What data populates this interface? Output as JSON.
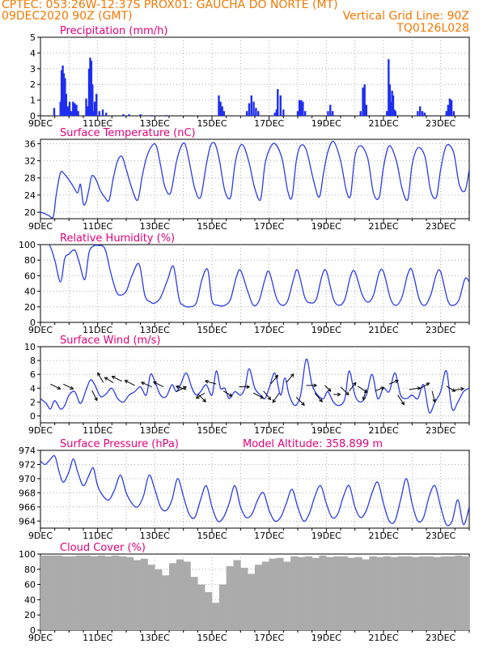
{
  "header": {
    "line1_left": "CPTEC:   053:26W-12:37S   PROX01: GAUCHA DO NORTE (MT)",
    "line2_left": "09DEC2020 90Z (GMT)",
    "line2_right": "Vertical Grid Line: 90Z",
    "line3_right": "TQ0126L028"
  },
  "colors": {
    "header": "#f07800",
    "title": "#e0007a",
    "line": "#2a3ce8",
    "bar": "#1f2ef0",
    "cloud": "#ababab"
  },
  "chart_data": [
    {
      "id": "precip",
      "type": "bar",
      "title": "Precipitation (mm/h)",
      "ylim": [
        0,
        5
      ],
      "yticks": [
        0,
        1,
        2,
        3,
        4,
        5
      ],
      "xlim": [
        0,
        15
      ],
      "xticks": [
        "9DEC",
        "11DEC",
        "13DEC",
        "15DEC",
        "17DEC",
        "19DEC",
        "21DEC",
        "23DEC"
      ],
      "xtick_day": [
        0,
        2,
        4,
        6,
        8,
        10,
        12,
        14
      ],
      "grid": "dotted",
      "x_unit": "days since 9DEC",
      "x": [
        0.48,
        0.7,
        0.74,
        0.78,
        0.82,
        0.86,
        0.9,
        0.96,
        1.02,
        1.08,
        1.14,
        1.2,
        1.26,
        1.32,
        1.6,
        1.66,
        1.7,
        1.74,
        1.78,
        1.82,
        1.86,
        1.9,
        1.96,
        2.06,
        2.18,
        2.3,
        2.9,
        3.1,
        3.5,
        3.9,
        4.4,
        6.24,
        6.3,
        6.36,
        6.42,
        7.22,
        7.3,
        7.38,
        7.46,
        7.54,
        7.62,
        8.2,
        8.26,
        8.3,
        8.4,
        8.5,
        9.0,
        9.06,
        9.12,
        9.18,
        9.26,
        10.06,
        10.14,
        10.22,
        11.2,
        11.28,
        11.34,
        11.4,
        12.12,
        12.18,
        12.22,
        12.26,
        12.3,
        12.34,
        12.38,
        12.42,
        13.2,
        13.28,
        13.36,
        13.44,
        14.2,
        14.26,
        14.32,
        14.38,
        14.46
      ],
      "values": [
        0.5,
        0.9,
        2.9,
        3.2,
        2.7,
        2.4,
        1.4,
        0.6,
        0.9,
        0.3,
        0.9,
        0.8,
        0.7,
        0.3,
        1.1,
        0.6,
        3.0,
        3.7,
        3.5,
        2.0,
        0.3,
        0.9,
        1.4,
        0.3,
        0.4,
        0.2,
        0.1,
        0.1,
        0.1,
        0.05,
        0.05,
        1.3,
        0.9,
        0.6,
        0.3,
        0.3,
        0.8,
        1.3,
        0.9,
        0.5,
        0.3,
        0.2,
        0.4,
        1.7,
        1.3,
        0.4,
        0.3,
        1.0,
        1.0,
        0.9,
        0.3,
        0.3,
        0.7,
        0.3,
        0.3,
        1.8,
        2.0,
        0.7,
        0.3,
        3.6,
        2.0,
        0.9,
        1.6,
        1.3,
        0.4,
        0.3,
        0.3,
        0.6,
        0.3,
        0.2,
        0.3,
        0.7,
        1.1,
        1.0,
        0.3
      ]
    },
    {
      "id": "temp",
      "type": "line",
      "title": "Surface Temperature (nC)",
      "ylim": [
        18.5,
        37
      ],
      "yticks": [
        20,
        24,
        28,
        32,
        36
      ],
      "xlim": [
        0,
        15
      ],
      "xticks": [
        "9DEC",
        "11DEC",
        "13DEC",
        "15DEC",
        "17DEC",
        "19DEC",
        "21DEC",
        "23DEC"
      ],
      "xtick_day": [
        0,
        2,
        4,
        6,
        8,
        10,
        12,
        14
      ],
      "grid": "dotted",
      "x_unit": "days since 9DEC",
      "x": [
        0,
        0.15,
        0.3,
        0.45,
        0.55,
        0.7,
        0.85,
        1.0,
        1.15,
        1.3,
        1.4,
        1.5,
        1.6,
        1.7,
        1.8,
        1.95,
        2.1,
        2.25,
        2.4,
        2.55,
        2.7,
        2.85,
        3.0,
        3.2,
        3.4,
        3.55,
        3.7,
        3.9,
        4.05,
        4.2,
        4.35,
        4.55,
        4.75,
        4.9,
        5.05,
        5.2,
        5.4,
        5.6,
        5.8,
        5.95,
        6.1,
        6.25,
        6.45,
        6.65,
        6.8,
        6.95,
        7.1,
        7.3,
        7.5,
        7.7,
        7.85,
        8.0,
        8.2,
        8.45,
        8.65,
        8.8,
        8.95,
        9.1,
        9.3,
        9.55,
        9.75,
        9.9,
        10.05,
        10.25,
        10.5,
        10.7,
        10.85,
        11.0,
        11.2,
        11.45,
        11.65,
        11.85,
        12.0,
        12.2,
        12.45,
        12.65,
        12.85,
        13.0,
        13.2,
        13.45,
        13.65,
        13.85,
        14.0,
        14.2,
        14.45,
        14.65,
        14.85,
        15.0
      ],
      "values": [
        20,
        19.7,
        19.2,
        19.0,
        24.0,
        29.2,
        28.8,
        27.5,
        26.0,
        24.5,
        26.5,
        22.0,
        22.5,
        25.5,
        28.5,
        27.5,
        25.0,
        23.5,
        22.8,
        28.0,
        32.0,
        33.0,
        30.0,
        25.5,
        22.8,
        28.0,
        32.5,
        35.5,
        35.5,
        31.0,
        26.0,
        24.5,
        31.5,
        35.0,
        36.0,
        32.0,
        25.5,
        23.5,
        31.0,
        35.5,
        36.0,
        32.5,
        25.0,
        23.5,
        31.0,
        35.0,
        35.5,
        31.5,
        25.5,
        23.0,
        31.0,
        34.5,
        36.0,
        32.5,
        25.0,
        23.5,
        32.0,
        35.5,
        34.5,
        27.5,
        23.5,
        29.0,
        34.0,
        36.5,
        32.0,
        25.0,
        24.0,
        33.0,
        35.5,
        32.5,
        24.5,
        23.5,
        30.5,
        35.5,
        32.0,
        25.5,
        23.0,
        31.0,
        35.0,
        33.0,
        25.0,
        23.5,
        30.0,
        35.5,
        34.0,
        26.5,
        25.0,
        30.0
      ]
    },
    {
      "id": "rh",
      "type": "line",
      "title": "Relative Humidity (%)",
      "ylim": [
        0,
        100
      ],
      "yticks": [
        0,
        20,
        40,
        60,
        80,
        100
      ],
      "xlim": [
        0,
        15
      ],
      "xticks": [
        "9DEC",
        "11DEC",
        "13DEC",
        "15DEC",
        "17DEC",
        "19DEC",
        "21DEC",
        "23DEC"
      ],
      "xtick_day": [
        0,
        2,
        4,
        6,
        8,
        10,
        12,
        14
      ],
      "grid": "dotted",
      "x_unit": "days since 9DEC",
      "x": [
        0,
        0.3,
        0.5,
        0.7,
        0.85,
        1.0,
        1.2,
        1.35,
        1.55,
        1.7,
        1.85,
        2.0,
        2.25,
        2.45,
        2.65,
        2.8,
        3.0,
        3.2,
        3.45,
        3.65,
        3.85,
        4.0,
        4.2,
        4.45,
        4.65,
        4.85,
        5.0,
        5.2,
        5.45,
        5.65,
        5.85,
        6.0,
        6.2,
        6.45,
        6.65,
        6.85,
        7.0,
        7.25,
        7.45,
        7.65,
        7.85,
        8.0,
        8.25,
        8.45,
        8.65,
        8.85,
        9.0,
        9.25,
        9.45,
        9.65,
        9.85,
        10.0,
        10.25,
        10.45,
        10.65,
        10.85,
        11.0,
        11.25,
        11.45,
        11.65,
        11.85,
        12.0,
        12.25,
        12.45,
        12.65,
        12.85,
        13.0,
        13.25,
        13.45,
        13.65,
        13.85,
        14.0,
        14.25,
        14.45,
        14.65,
        14.85,
        15.0
      ],
      "values": [
        100,
        100,
        80,
        52,
        82,
        88,
        93,
        78,
        55,
        90,
        98,
        99,
        95,
        65,
        40,
        35,
        40,
        60,
        75,
        35,
        26,
        25,
        32,
        55,
        72,
        30,
        22,
        20,
        25,
        55,
        68,
        28,
        22,
        22,
        30,
        58,
        67,
        40,
        22,
        28,
        55,
        65,
        32,
        22,
        28,
        55,
        67,
        32,
        25,
        30,
        60,
        66,
        30,
        22,
        30,
        60,
        65,
        36,
        26,
        35,
        64,
        65,
        30,
        22,
        33,
        62,
        67,
        30,
        22,
        35,
        62,
        65,
        28,
        22,
        30,
        56,
        52
      ]
    },
    {
      "id": "wind",
      "type": "line",
      "title": "Surface Wind (m/s)",
      "ylim": [
        -1,
        10
      ],
      "yticks": [
        0,
        2,
        4,
        6,
        8,
        10
      ],
      "xlim": [
        0,
        15
      ],
      "xticks": [
        "9DEC",
        "11DEC",
        "13DEC",
        "15DEC",
        "17DEC",
        "19DEC",
        "21DEC",
        "23DEC"
      ],
      "xtick_day": [
        0,
        2,
        4,
        6,
        8,
        10,
        12,
        14
      ],
      "grid": "dotted",
      "x_unit": "days since 9DEC",
      "x": [
        0,
        0.2,
        0.35,
        0.5,
        0.7,
        0.85,
        1.0,
        1.2,
        1.4,
        1.6,
        1.75,
        1.9,
        2.1,
        2.3,
        2.5,
        2.7,
        2.9,
        3.1,
        3.3,
        3.5,
        3.7,
        3.85,
        4.0,
        4.2,
        4.4,
        4.6,
        4.75,
        4.9,
        5.1,
        5.3,
        5.45,
        5.6,
        5.8,
        6.0,
        6.15,
        6.3,
        6.45,
        6.6,
        6.8,
        7.0,
        7.15,
        7.3,
        7.5,
        7.7,
        7.85,
        8.0,
        8.2,
        8.4,
        8.55,
        8.7,
        8.9,
        9.1,
        9.3,
        9.5,
        9.7,
        9.9,
        10.05,
        10.25,
        10.45,
        10.65,
        10.8,
        11.0,
        11.2,
        11.4,
        11.6,
        11.8,
        12.0,
        12.2,
        12.4,
        12.6,
        12.8,
        13.0,
        13.2,
        13.4,
        13.6,
        13.8,
        14.0,
        14.2,
        14.4,
        14.6,
        14.8,
        15.0
      ],
      "values": [
        2.5,
        1.8,
        1.0,
        2.2,
        1.0,
        1.5,
        3.0,
        3.5,
        1.8,
        3.8,
        5.2,
        4.5,
        2.8,
        3.2,
        4.0,
        2.5,
        2.0,
        3.0,
        3.5,
        4.2,
        3.0,
        6.0,
        5.0,
        3.0,
        2.8,
        4.5,
        3.5,
        4.5,
        6.2,
        4.0,
        3.0,
        3.5,
        4.5,
        3.0,
        6.5,
        4.0,
        4.0,
        2.5,
        3.5,
        3.0,
        4.0,
        6.8,
        4.0,
        3.0,
        2.5,
        4.0,
        6.2,
        3.0,
        5.5,
        3.0,
        1.5,
        3.0,
        8.2,
        4.5,
        3.0,
        2.5,
        3.5,
        2.0,
        1.5,
        2.5,
        6.5,
        3.0,
        2.0,
        3.0,
        6.0,
        2.5,
        4.0,
        3.5,
        6.2,
        3.0,
        2.5,
        3.0,
        2.5,
        4.5,
        0.5,
        2.0,
        3.5,
        6.5,
        1.0,
        2.0,
        3.5,
        4.0
      ]
    },
    {
      "id": "pres",
      "type": "line",
      "title": "Surface Pressure (hPa)",
      "annotation": "Model Altitude: 358.899  m",
      "ylim": [
        963,
        974
      ],
      "yticks": [
        964,
        966,
        968,
        970,
        972,
        974
      ],
      "xlim": [
        0,
        15
      ],
      "xticks": [
        "9DEC",
        "11DEC",
        "13DEC",
        "15DEC",
        "17DEC",
        "19DEC",
        "21DEC",
        "23DEC"
      ],
      "xtick_day": [
        0,
        2,
        4,
        6,
        8,
        10,
        12,
        14
      ],
      "grid": "dotted",
      "x_unit": "days since 9DEC",
      "x": [
        0,
        0.15,
        0.3,
        0.5,
        0.65,
        0.8,
        1.0,
        1.15,
        1.3,
        1.5,
        1.7,
        1.85,
        2.0,
        2.2,
        2.4,
        2.6,
        2.8,
        3.0,
        3.2,
        3.4,
        3.6,
        3.8,
        4.0,
        4.2,
        4.4,
        4.6,
        4.8,
        5.0,
        5.2,
        5.4,
        5.6,
        5.8,
        6.0,
        6.2,
        6.4,
        6.6,
        6.8,
        7.0,
        7.2,
        7.4,
        7.6,
        7.8,
        8.0,
        8.2,
        8.4,
        8.6,
        8.8,
        9.0,
        9.2,
        9.4,
        9.6,
        9.8,
        10.0,
        10.2,
        10.4,
        10.6,
        10.8,
        11.0,
        11.2,
        11.4,
        11.6,
        11.8,
        12.0,
        12.2,
        12.4,
        12.6,
        12.8,
        13.0,
        13.2,
        13.4,
        13.6,
        13.8,
        14.0,
        14.2,
        14.4,
        14.6,
        14.8,
        15.0
      ],
      "values": [
        972.5,
        972.0,
        972.5,
        973.2,
        971.0,
        969.5,
        971.0,
        972.8,
        971.0,
        969.0,
        970.5,
        971.5,
        969.0,
        967.5,
        967.0,
        968.5,
        970.5,
        968.0,
        966.5,
        966.0,
        967.5,
        970.5,
        968.5,
        966.0,
        965.5,
        967.0,
        970.0,
        967.5,
        965.0,
        964.5,
        967.0,
        969.0,
        966.0,
        964.0,
        964.5,
        966.5,
        969.0,
        966.0,
        964.5,
        965.0,
        967.0,
        968.0,
        965.5,
        964.0,
        964.5,
        966.5,
        968.5,
        966.0,
        964.0,
        965.0,
        967.5,
        969.0,
        966.5,
        964.5,
        965.0,
        967.5,
        969.0,
        966.0,
        964.5,
        965.5,
        968.0,
        969.5,
        966.5,
        964.0,
        964.0,
        967.0,
        970.0,
        966.5,
        964.0,
        964.5,
        967.5,
        969.0,
        966.0,
        963.5,
        964.0,
        967.0,
        963.5,
        966.0
      ]
    },
    {
      "id": "cloud",
      "type": "bar",
      "title": "Cloud Cover (%)",
      "ylim": [
        0,
        100
      ],
      "yticks": [
        0,
        20,
        40,
        60,
        80,
        100
      ],
      "xlim": [
        0,
        15
      ],
      "xticks": [
        "9DEC",
        "11DEC",
        "13DEC",
        "15DEC",
        "17DEC",
        "19DEC",
        "21DEC",
        "23DEC"
      ],
      "xtick_day": [
        0,
        2,
        4,
        6,
        8,
        10,
        12,
        14
      ],
      "grid": "dotted",
      "x_unit": "days since 9DEC",
      "x": [
        0,
        0.25,
        0.5,
        0.75,
        1.0,
        1.25,
        1.5,
        1.75,
        2.0,
        2.25,
        2.5,
        2.75,
        3.0,
        3.25,
        3.5,
        3.75,
        4.0,
        4.25,
        4.5,
        4.75,
        5.0,
        5.25,
        5.5,
        5.75,
        6.0,
        6.25,
        6.5,
        6.75,
        7.0,
        7.25,
        7.5,
        7.75,
        8.0,
        8.25,
        8.5,
        8.75,
        9.0,
        9.25,
        9.5,
        9.75,
        10.0,
        10.25,
        10.5,
        10.75,
        11.0,
        11.25,
        11.5,
        11.75,
        12.0,
        12.25,
        12.5,
        12.75,
        13.0,
        13.25,
        13.5,
        13.75,
        14.0,
        14.25,
        14.5,
        14.75
      ],
      "values": [
        98,
        98,
        98,
        97,
        97,
        98,
        98,
        97,
        98,
        97,
        98,
        97,
        96,
        92,
        94,
        86,
        80,
        72,
        88,
        93,
        90,
        70,
        60,
        50,
        36,
        60,
        84,
        92,
        82,
        74,
        86,
        90,
        94,
        95,
        90,
        97,
        96,
        97,
        95,
        98,
        96,
        97,
        97,
        95,
        96,
        93,
        97,
        96,
        97,
        96,
        97,
        97,
        96,
        97,
        97,
        96,
        97,
        97,
        98,
        97
      ]
    }
  ],
  "wind_vectors": {
    "note": "wind direction arrows along the wind panel",
    "x": [
      0.35,
      0.8,
      1.8,
      2.2,
      2.55,
      2.85,
      3.3,
      3.9,
      4.3,
      4.75,
      5.1,
      5.5,
      5.75,
      6.15,
      6.4,
      6.95,
      7.45,
      7.8,
      8.05,
      8.35,
      8.6,
      8.95,
      9.3,
      9.6,
      9.95,
      10.25,
      10.5,
      10.8,
      11.1,
      11.4,
      11.7,
      12.2,
      12.5,
      12.9,
      13.3,
      13.7,
      14.2,
      14.45
    ],
    "y": [
      4.6,
      4.6,
      3.7,
      4.8,
      4.8,
      5.0,
      4.4,
      4.2,
      4.2,
      3.5,
      3.8,
      3.2,
      3.3,
      4.6,
      3.6,
      4.2,
      3.3,
      3.6,
      4.6,
      3.3,
      4.8,
      2.7,
      4.4,
      3.3,
      4.4,
      3.1,
      4.2,
      3.6,
      4.3,
      3.9,
      3.6,
      4.6,
      3.0,
      3.8,
      4.0,
      3.6,
      4.3,
      3.7
    ],
    "u": [
      0.6,
      0.6,
      0.4,
      -0.4,
      -0.5,
      -0.6,
      -0.6,
      -0.7,
      -0.6,
      0.6,
      -0.6,
      0.5,
      -0.5,
      -0.7,
      0.5,
      0.6,
      0.6,
      0.5,
      0.5,
      -0.4,
      0.5,
      0.5,
      0.6,
      0.5,
      0.3,
      0.3,
      0.5,
      0.4,
      0.6,
      -0.2,
      0.5,
      0.5,
      0.4,
      0.7,
      0.5,
      0.2,
      0.5,
      0.6
    ],
    "v": [
      -0.3,
      -0.3,
      -0.8,
      0.7,
      0.3,
      0.3,
      0.3,
      0.3,
      0.3,
      0.3,
      0.2,
      -0.5,
      -0.3,
      0.2,
      -0.3,
      0.0,
      -0.3,
      -0.6,
      0.6,
      -0.6,
      0.6,
      -0.5,
      0.0,
      -0.6,
      -0.3,
      0.0,
      -0.5,
      0.5,
      -0.4,
      -0.7,
      0.2,
      0.2,
      -0.6,
      0.1,
      0.3,
      -0.8,
      -0.3,
      0.1
    ]
  }
}
